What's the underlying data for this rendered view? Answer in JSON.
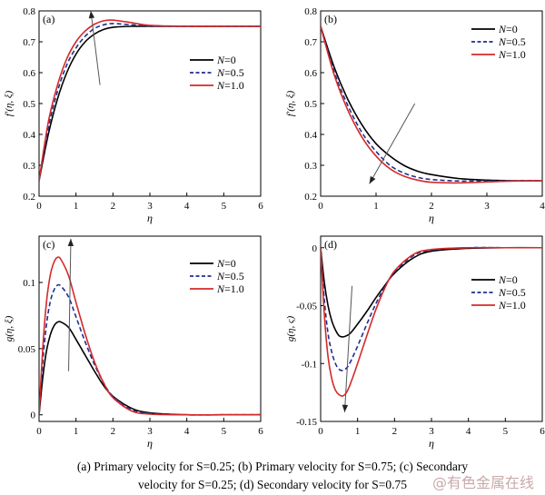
{
  "chart_data": [
    {
      "type": "line",
      "panel_label": "(a)",
      "xlabel": "η",
      "ylabel": "f′(η, ξ)",
      "xlim": [
        0,
        6
      ],
      "ylim": [
        0.2,
        0.8
      ],
      "xticks": [
        0,
        1,
        2,
        3,
        4,
        5,
        6
      ],
      "yticks": [
        0.2,
        0.3,
        0.4,
        0.5,
        0.6,
        0.7,
        0.8
      ],
      "legend_position": "right-middle",
      "arrow": {
        "from": [
          1.65,
          0.56
        ],
        "to": [
          1.4,
          0.8
        ],
        "meaning": "increasing N"
      },
      "series": [
        {
          "name": "N=0",
          "color": "#000000",
          "dash": "solid",
          "x": [
            0,
            0.25,
            0.5,
            0.75,
            1.0,
            1.25,
            1.5,
            1.75,
            2.0,
            2.5,
            3.0,
            4.0,
            5.0,
            6.0
          ],
          "y": [
            0.25,
            0.4,
            0.515,
            0.6,
            0.66,
            0.7,
            0.725,
            0.74,
            0.747,
            0.75,
            0.75,
            0.75,
            0.75,
            0.75
          ]
        },
        {
          "name": "N=0.5",
          "color": "#1f2f8f",
          "dash": "dashed",
          "x": [
            0,
            0.25,
            0.5,
            0.75,
            1.0,
            1.25,
            1.5,
            1.75,
            2.0,
            2.5,
            3.0,
            4.0,
            5.0,
            6.0
          ],
          "y": [
            0.25,
            0.42,
            0.54,
            0.625,
            0.68,
            0.718,
            0.743,
            0.755,
            0.759,
            0.755,
            0.751,
            0.75,
            0.75,
            0.75
          ]
        },
        {
          "name": "N=1.0",
          "color": "#d42a2a",
          "dash": "solid",
          "x": [
            0,
            0.25,
            0.5,
            0.75,
            1.0,
            1.25,
            1.5,
            1.75,
            2.0,
            2.5,
            3.0,
            4.0,
            5.0,
            6.0
          ],
          "y": [
            0.25,
            0.44,
            0.56,
            0.645,
            0.7,
            0.735,
            0.757,
            0.768,
            0.77,
            0.762,
            0.753,
            0.75,
            0.75,
            0.75
          ]
        }
      ]
    },
    {
      "type": "line",
      "panel_label": "(b)",
      "xlabel": "η",
      "ylabel": "f′(η, ξ)",
      "xlim": [
        0,
        4
      ],
      "ylim": [
        0.2,
        0.8
      ],
      "xticks": [
        0,
        1,
        2,
        3,
        4
      ],
      "yticks": [
        0.2,
        0.3,
        0.4,
        0.5,
        0.6,
        0.7,
        0.8
      ],
      "legend_position": "top-right",
      "arrow": {
        "from": [
          1.7,
          0.5
        ],
        "to": [
          0.88,
          0.24
        ],
        "meaning": "increasing N"
      },
      "series": [
        {
          "name": "N=0",
          "color": "#000000",
          "dash": "solid",
          "x": [
            0,
            0.25,
            0.5,
            0.75,
            1.0,
            1.25,
            1.5,
            1.75,
            2.0,
            2.5,
            3.0,
            3.5,
            4.0
          ],
          "y": [
            0.75,
            0.615,
            0.51,
            0.43,
            0.37,
            0.33,
            0.3,
            0.281,
            0.27,
            0.257,
            0.252,
            0.25,
            0.25
          ]
        },
        {
          "name": "N=0.5",
          "color": "#1f2f8f",
          "dash": "dashed",
          "x": [
            0,
            0.25,
            0.5,
            0.75,
            1.0,
            1.25,
            1.5,
            1.75,
            2.0,
            2.5,
            3.0,
            3.5,
            4.0
          ],
          "y": [
            0.75,
            0.6,
            0.49,
            0.405,
            0.345,
            0.3,
            0.275,
            0.261,
            0.254,
            0.249,
            0.249,
            0.25,
            0.25
          ]
        },
        {
          "name": "N=1.0",
          "color": "#d42a2a",
          "dash": "solid",
          "x": [
            0,
            0.25,
            0.5,
            0.75,
            1.0,
            1.25,
            1.5,
            1.75,
            2.0,
            2.5,
            3.0,
            3.5,
            4.0
          ],
          "y": [
            0.75,
            0.59,
            0.475,
            0.39,
            0.33,
            0.289,
            0.265,
            0.252,
            0.245,
            0.243,
            0.246,
            0.249,
            0.25
          ]
        }
      ]
    },
    {
      "type": "line",
      "panel_label": "(c)",
      "xlabel": "η",
      "ylabel": "g(η, ξ)",
      "xlim": [
        0,
        6
      ],
      "ylim": [
        -0.005,
        0.135
      ],
      "xticks": [
        0,
        1,
        2,
        3,
        4,
        5,
        6
      ],
      "yticks": [
        0,
        0.05,
        0.1
      ],
      "legend_position": "top-right",
      "arrow": {
        "from": [
          0.8,
          0.033
        ],
        "to": [
          0.86,
          0.133
        ],
        "meaning": "increasing N"
      },
      "series": [
        {
          "name": "N=0",
          "color": "#000000",
          "dash": "solid",
          "x": [
            0,
            0.1,
            0.2,
            0.3,
            0.4,
            0.5,
            0.6,
            0.8,
            1.0,
            1.25,
            1.5,
            1.75,
            2.0,
            2.5,
            3.0,
            4.0,
            5.0,
            6.0
          ],
          "y": [
            0,
            0.028,
            0.048,
            0.06,
            0.067,
            0.07,
            0.07,
            0.066,
            0.057,
            0.045,
            0.033,
            0.022,
            0.014,
            0.005,
            0.0015,
            0,
            0,
            0
          ]
        },
        {
          "name": "N=0.5",
          "color": "#1f2f8f",
          "dash": "dashed",
          "x": [
            0,
            0.1,
            0.2,
            0.3,
            0.4,
            0.5,
            0.6,
            0.8,
            1.0,
            1.25,
            1.5,
            1.75,
            2.0,
            2.5,
            3.0,
            4.0,
            5.0,
            6.0
          ],
          "y": [
            0,
            0.04,
            0.068,
            0.085,
            0.094,
            0.098,
            0.097,
            0.089,
            0.074,
            0.055,
            0.038,
            0.024,
            0.014,
            0.004,
            0.001,
            0,
            0,
            0
          ]
        },
        {
          "name": "N=1.0",
          "color": "#d42a2a",
          "dash": "solid",
          "x": [
            0,
            0.1,
            0.2,
            0.3,
            0.4,
            0.5,
            0.6,
            0.8,
            1.0,
            1.25,
            1.5,
            1.75,
            2.0,
            2.5,
            3.0,
            4.0,
            5.0,
            6.0
          ],
          "y": [
            0,
            0.05,
            0.085,
            0.105,
            0.115,
            0.119,
            0.117,
            0.105,
            0.085,
            0.061,
            0.04,
            0.024,
            0.013,
            0.003,
            0.0005,
            0,
            0,
            0
          ]
        }
      ]
    },
    {
      "type": "line",
      "panel_label": "(d)",
      "xlabel": "η",
      "ylabel": "g(η, ς)",
      "xlim": [
        0,
        6
      ],
      "ylim": [
        -0.15,
        0.01
      ],
      "xticks": [
        0,
        1,
        2,
        3,
        4,
        5,
        6
      ],
      "yticks": [
        -0.15,
        -0.1,
        -0.05,
        0
      ],
      "legend_position": "right-middle",
      "arrow": {
        "from": [
          0.85,
          -0.033
        ],
        "to": [
          0.65,
          -0.142
        ],
        "meaning": "increasing N"
      },
      "series": [
        {
          "name": "N=0",
          "color": "#000000",
          "dash": "solid",
          "x": [
            0,
            0.1,
            0.2,
            0.3,
            0.4,
            0.5,
            0.6,
            0.7,
            0.8,
            1.0,
            1.25,
            1.5,
            1.75,
            2.0,
            2.5,
            3.0,
            4.0,
            5.0,
            6.0
          ],
          "y": [
            0,
            -0.03,
            -0.05,
            -0.063,
            -0.071,
            -0.076,
            -0.077,
            -0.076,
            -0.074,
            -0.066,
            -0.055,
            -0.043,
            -0.032,
            -0.022,
            -0.009,
            -0.003,
            -0.0005,
            0,
            0
          ]
        },
        {
          "name": "N=0.5",
          "color": "#1f2f8f",
          "dash": "dashed",
          "x": [
            0,
            0.1,
            0.2,
            0.3,
            0.4,
            0.5,
            0.6,
            0.7,
            0.8,
            1.0,
            1.25,
            1.5,
            1.75,
            2.0,
            2.5,
            3.0,
            4.0,
            5.0,
            6.0
          ],
          "y": [
            0,
            -0.045,
            -0.074,
            -0.09,
            -0.1,
            -0.105,
            -0.106,
            -0.104,
            -0.099,
            -0.085,
            -0.066,
            -0.048,
            -0.033,
            -0.021,
            -0.007,
            -0.002,
            0,
            0,
            0
          ]
        },
        {
          "name": "N=1.0",
          "color": "#d42a2a",
          "dash": "solid",
          "x": [
            0,
            0.1,
            0.2,
            0.3,
            0.4,
            0.5,
            0.6,
            0.7,
            0.8,
            1.0,
            1.25,
            1.5,
            1.75,
            2.0,
            2.5,
            3.0,
            4.0,
            5.0,
            6.0
          ],
          "y": [
            0,
            -0.058,
            -0.094,
            -0.113,
            -0.123,
            -0.127,
            -0.128,
            -0.125,
            -0.118,
            -0.1,
            -0.076,
            -0.053,
            -0.034,
            -0.02,
            -0.006,
            -0.0015,
            0,
            0,
            0
          ]
        }
      ]
    }
  ],
  "caption": {
    "line1": "(a) Primary velocity for S=0.25; (b) Primary velocity for S=0.75; (c) Secondary",
    "line2": "velocity for S=0.25; (d) Secondary velocity for S=0.75"
  },
  "watermark": "@有色金属在线"
}
